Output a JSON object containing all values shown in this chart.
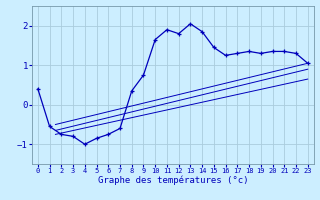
{
  "xlabel": "Graphe des températures (°c)",
  "background_color": "#cceeff",
  "grid_color": "#aaccdd",
  "line_color": "#0000bb",
  "xlim": [
    -0.5,
    23.5
  ],
  "ylim": [
    -1.5,
    2.5
  ],
  "yticks": [
    -1,
    0,
    1,
    2
  ],
  "xticks": [
    0,
    1,
    2,
    3,
    4,
    5,
    6,
    7,
    8,
    9,
    10,
    11,
    12,
    13,
    14,
    15,
    16,
    17,
    18,
    19,
    20,
    21,
    22,
    23
  ],
  "main_x": [
    0,
    1,
    2,
    3,
    4,
    5,
    6,
    7,
    8,
    9,
    10,
    11,
    12,
    13,
    14,
    15,
    16,
    17,
    18,
    19,
    20,
    21,
    22,
    23
  ],
  "main_y": [
    0.4,
    -0.55,
    -0.75,
    -0.8,
    -1.0,
    -0.85,
    -0.75,
    -0.6,
    0.35,
    0.75,
    1.65,
    1.9,
    1.8,
    2.05,
    1.85,
    1.45,
    1.25,
    1.3,
    1.35,
    1.3,
    1.35,
    1.35,
    1.3,
    1.05
  ],
  "reg_lines": [
    {
      "x": [
        1.5,
        23
      ],
      "y": [
        -0.75,
        0.65
      ]
    },
    {
      "x": [
        1.5,
        23
      ],
      "y": [
        -0.65,
        0.9
      ]
    },
    {
      "x": [
        1.5,
        23
      ],
      "y": [
        -0.5,
        1.05
      ]
    }
  ]
}
